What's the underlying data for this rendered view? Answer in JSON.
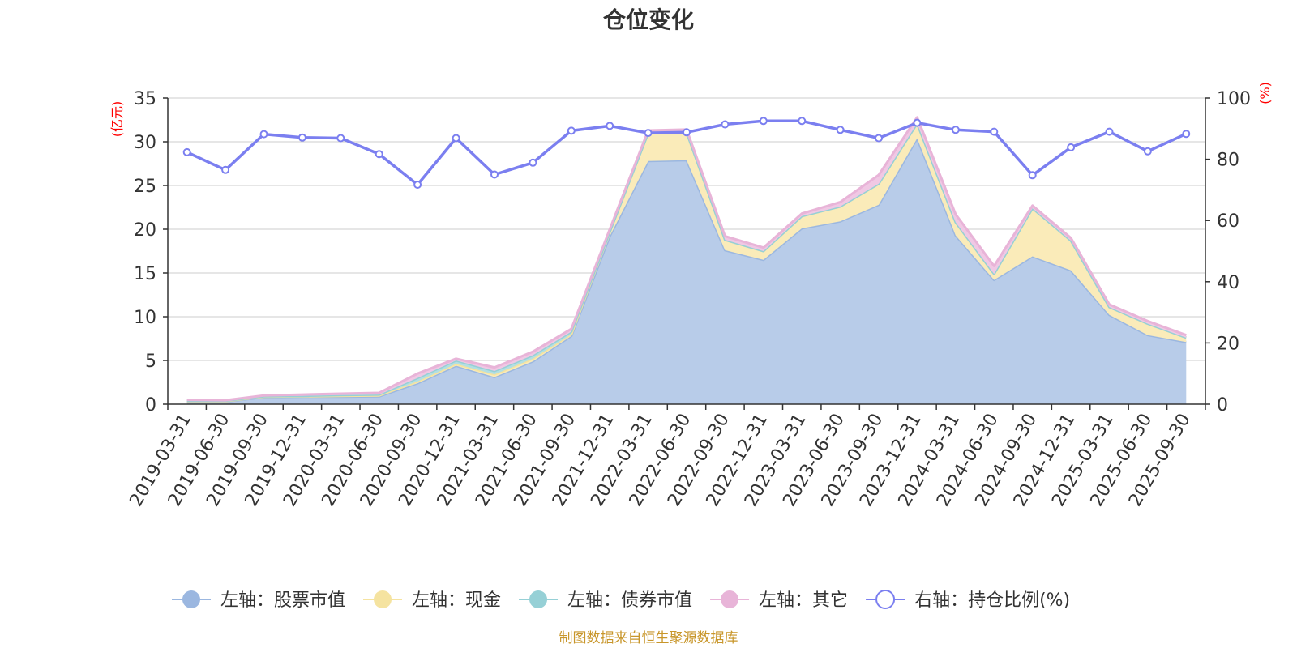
{
  "chart_data": {
    "type": "area",
    "title": "仓位变化",
    "categories": [
      "2019-03-31",
      "2019-06-30",
      "2019-09-30",
      "2019-12-31",
      "2020-03-31",
      "2020-06-30",
      "2020-09-30",
      "2020-12-31",
      "2021-03-31",
      "2021-06-30",
      "2021-09-30",
      "2021-12-31",
      "2022-03-31",
      "2022-06-30",
      "2022-09-30",
      "2022-12-31",
      "2023-03-31",
      "2023-06-30",
      "2023-09-30",
      "2023-12-31",
      "2024-03-31",
      "2024-06-30",
      "2024-09-30",
      "2024-12-31",
      "2025-03-31",
      "2025-06-30",
      "2025-09-30"
    ],
    "left_axis": {
      "name": "(亿元)",
      "ylim": [
        0,
        35
      ],
      "ticks": [
        0,
        5,
        10,
        15,
        20,
        25,
        30,
        35
      ]
    },
    "right_axis": {
      "name": "(%)",
      "ylim": [
        0,
        100
      ],
      "ticks": [
        0,
        20,
        40,
        60,
        80,
        100
      ]
    },
    "grid": true,
    "legend_position": "bottom",
    "stack_series": [
      {
        "name": "左轴：股票市值",
        "color": "#9bb7e0",
        "fill": "#b8cce9",
        "values": [
          0.3,
          0.3,
          0.8,
          0.85,
          0.85,
          0.9,
          2.4,
          4.4,
          3.1,
          4.9,
          7.8,
          19.2,
          27.8,
          27.9,
          17.6,
          16.5,
          20.1,
          20.9,
          22.8,
          30.4,
          19.3,
          14.2,
          16.9,
          15.3,
          10.2,
          7.9,
          7.1
        ]
      },
      {
        "name": "左轴：现金",
        "color": "#f5e3a0",
        "fill": "#faebb9",
        "values": [
          0.05,
          0.05,
          0.05,
          0.05,
          0.1,
          0.1,
          0.2,
          0.2,
          0.3,
          0.3,
          0.2,
          0.5,
          3.2,
          3.2,
          1.2,
          1.0,
          1.4,
          1.7,
          2.4,
          1.7,
          1.5,
          0.7,
          5.5,
          3.4,
          0.9,
          1.3,
          0.5
        ]
      },
      {
        "name": "左轴：债券市值",
        "color": "#96d0d6",
        "fill": "#b3dfe3",
        "values": [
          0.05,
          0.05,
          0.05,
          0.05,
          0.1,
          0.1,
          0.4,
          0.4,
          0.4,
          0.4,
          0.3,
          0.0,
          0.0,
          0.0,
          0.0,
          0.0,
          0.0,
          0.0,
          0.0,
          0.0,
          0.0,
          0.0,
          0.0,
          0.0,
          0.0,
          0.0,
          0.0
        ]
      },
      {
        "name": "左轴：其它",
        "color": "#e8b4d8",
        "fill": "#f0c8e4",
        "values": [
          0.1,
          0.05,
          0.1,
          0.15,
          0.15,
          0.2,
          0.5,
          0.2,
          0.4,
          0.4,
          0.3,
          0.3,
          0.3,
          0.3,
          0.4,
          0.4,
          0.3,
          0.5,
          1.0,
          0.7,
          0.9,
          0.9,
          0.3,
          0.3,
          0.3,
          0.3,
          0.3
        ]
      }
    ],
    "line_series": {
      "name": "右轴：持仓比例(%)",
      "color": "#7b7ff0",
      "values": [
        82.3,
        76.5,
        88.2,
        87.1,
        86.9,
        81.7,
        71.7,
        86.9,
        75.0,
        78.9,
        89.3,
        90.9,
        88.6,
        88.8,
        91.4,
        92.5,
        92.5,
        89.6,
        86.9,
        91.9,
        89.6,
        89.0,
        74.8,
        83.9,
        89.0,
        82.6,
        88.3
      ]
    },
    "legend": [
      {
        "label": "左轴：股票市值",
        "marker": "filled-circle",
        "color": "#9bb7e0"
      },
      {
        "label": "左轴：现金",
        "marker": "filled-circle",
        "color": "#f5e3a0"
      },
      {
        "label": "左轴：债券市值",
        "marker": "filled-circle",
        "color": "#96d0d6"
      },
      {
        "label": "左轴：其它",
        "marker": "filled-circle",
        "color": "#e8b4d8"
      },
      {
        "label": "右轴：持仓比例(%)",
        "marker": "hollow-circle",
        "color": "#7b7ff0"
      }
    ],
    "source_note": "制图数据来自恒生聚源数据库"
  }
}
